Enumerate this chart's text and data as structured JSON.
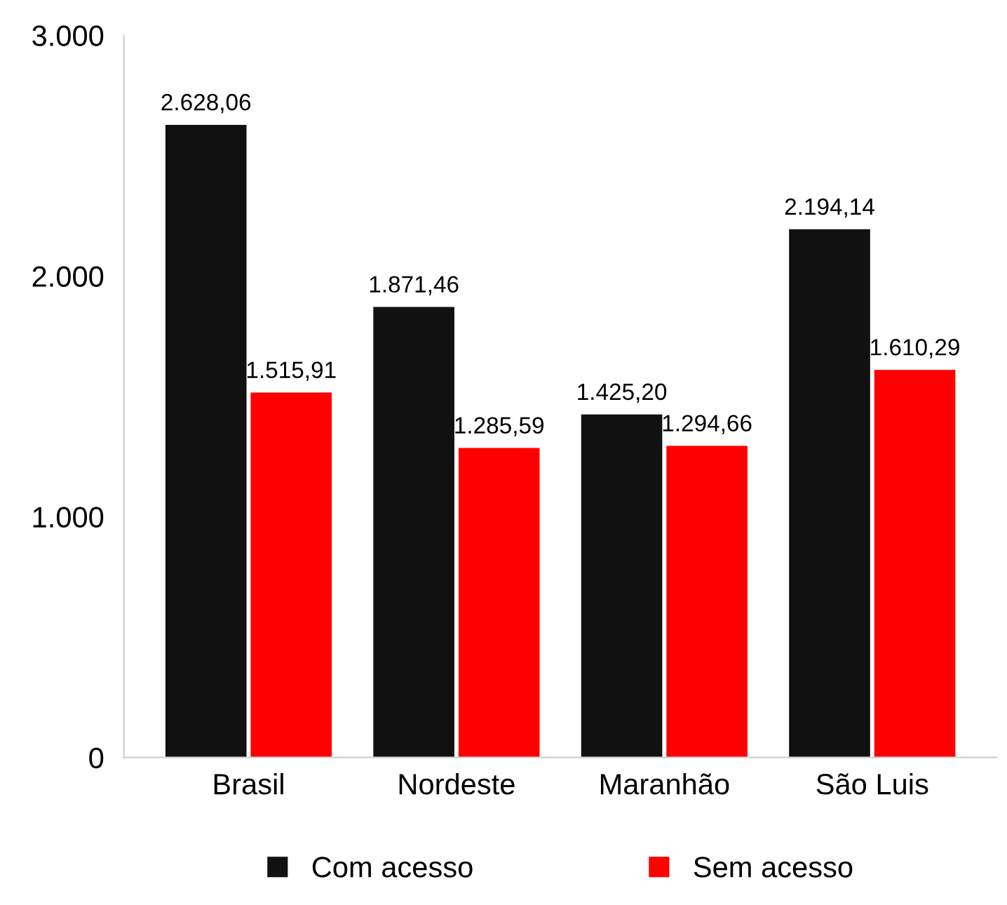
{
  "chart_data": {
    "type": "bar",
    "categories": [
      "Brasil",
      "Nordeste",
      "Maranhão",
      "São Luis"
    ],
    "series": [
      {
        "name": "Com acesso",
        "color": "#111111",
        "values": [
          2628.06,
          1871.46,
          1425.2,
          2194.14
        ],
        "value_labels": [
          "2.628,06",
          "1.871,46",
          "1.425,20",
          "2.194,14"
        ]
      },
      {
        "name": "Sem acesso",
        "color": "#ff0000",
        "values": [
          1515.91,
          1285.59,
          1294.66,
          1610.29
        ],
        "value_labels": [
          "1.515,91",
          "1.285,59",
          "1.294,66",
          "1.610,29"
        ]
      }
    ],
    "ylim": [
      0,
      3000
    ],
    "yticks": [
      0,
      {
        "value": 1000,
        "label": "1.000"
      },
      {
        "value": 2000,
        "label": "2.000"
      },
      {
        "value": 3000,
        "label": "3.000"
      }
    ],
    "grid": false,
    "legend": "bottom"
  }
}
